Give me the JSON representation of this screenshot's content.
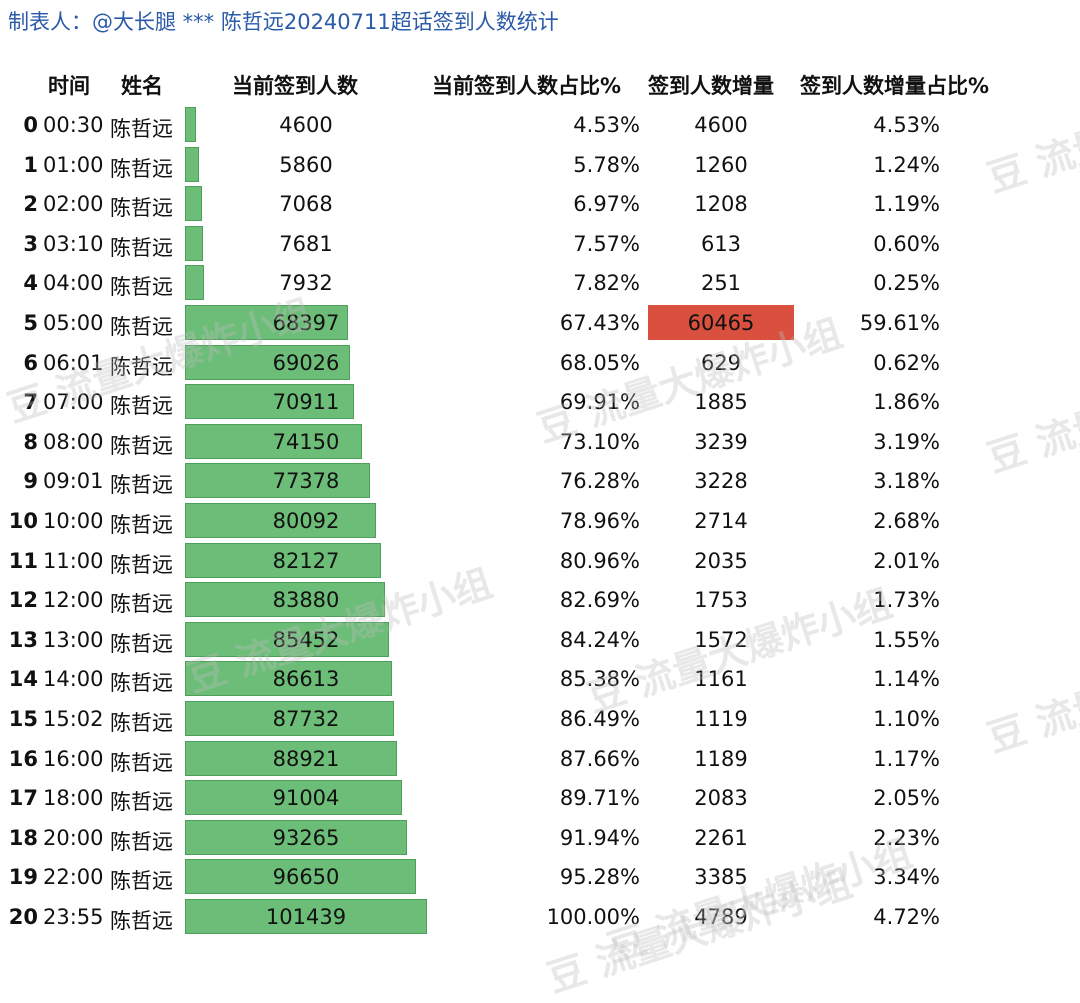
{
  "title": "制表人：@大长腿 *** 陈哲远20240711超话签到人数统计",
  "headers": {
    "time": "时间",
    "name": "姓名",
    "count": "当前签到人数",
    "count_pct": "当前签到人数占比%",
    "increase": "签到人数增量",
    "increase_pct": "签到人数增量占比%"
  },
  "watermark": "豆 流量大爆炸小组",
  "colors": {
    "bar": "#6cbd78",
    "highlight": "#d9503f",
    "title": "#2b5aa8"
  },
  "chart_data": {
    "type": "table",
    "bar_max": 101439,
    "highlight_increase_index": 5,
    "rows": [
      {
        "idx": "0",
        "time": "00:30",
        "name": "陈哲远",
        "count": 4600,
        "count_pct": "4.53%",
        "increase": "4600",
        "increase_pct": "4.53%"
      },
      {
        "idx": "1",
        "time": "01:00",
        "name": "陈哲远",
        "count": 5860,
        "count_pct": "5.78%",
        "increase": "1260",
        "increase_pct": "1.24%"
      },
      {
        "idx": "2",
        "time": "02:00",
        "name": "陈哲远",
        "count": 7068,
        "count_pct": "6.97%",
        "increase": "1208",
        "increase_pct": "1.19%"
      },
      {
        "idx": "3",
        "time": "03:10",
        "name": "陈哲远",
        "count": 7681,
        "count_pct": "7.57%",
        "increase": "613",
        "increase_pct": "0.60%"
      },
      {
        "idx": "4",
        "time": "04:00",
        "name": "陈哲远",
        "count": 7932,
        "count_pct": "7.82%",
        "increase": "251",
        "increase_pct": "0.25%"
      },
      {
        "idx": "5",
        "time": "05:00",
        "name": "陈哲远",
        "count": 68397,
        "count_pct": "67.43%",
        "increase": "60465",
        "increase_pct": "59.61%"
      },
      {
        "idx": "6",
        "time": "06:01",
        "name": "陈哲远",
        "count": 69026,
        "count_pct": "68.05%",
        "increase": "629",
        "increase_pct": "0.62%"
      },
      {
        "idx": "7",
        "time": "07:00",
        "name": "陈哲远",
        "count": 70911,
        "count_pct": "69.91%",
        "increase": "1885",
        "increase_pct": "1.86%"
      },
      {
        "idx": "8",
        "time": "08:00",
        "name": "陈哲远",
        "count": 74150,
        "count_pct": "73.10%",
        "increase": "3239",
        "increase_pct": "3.19%"
      },
      {
        "idx": "9",
        "time": "09:01",
        "name": "陈哲远",
        "count": 77378,
        "count_pct": "76.28%",
        "increase": "3228",
        "increase_pct": "3.18%"
      },
      {
        "idx": "10",
        "time": "10:00",
        "name": "陈哲远",
        "count": 80092,
        "count_pct": "78.96%",
        "increase": "2714",
        "increase_pct": "2.68%"
      },
      {
        "idx": "11",
        "time": "11:00",
        "name": "陈哲远",
        "count": 82127,
        "count_pct": "80.96%",
        "increase": "2035",
        "increase_pct": "2.01%"
      },
      {
        "idx": "12",
        "time": "12:00",
        "name": "陈哲远",
        "count": 83880,
        "count_pct": "82.69%",
        "increase": "1753",
        "increase_pct": "1.73%"
      },
      {
        "idx": "13",
        "time": "13:00",
        "name": "陈哲远",
        "count": 85452,
        "count_pct": "84.24%",
        "increase": "1572",
        "increase_pct": "1.55%"
      },
      {
        "idx": "14",
        "time": "14:00",
        "name": "陈哲远",
        "count": 86613,
        "count_pct": "85.38%",
        "increase": "1161",
        "increase_pct": "1.14%"
      },
      {
        "idx": "15",
        "time": "15:02",
        "name": "陈哲远",
        "count": 87732,
        "count_pct": "86.49%",
        "increase": "1119",
        "increase_pct": "1.10%"
      },
      {
        "idx": "16",
        "time": "16:00",
        "name": "陈哲远",
        "count": 88921,
        "count_pct": "87.66%",
        "increase": "1189",
        "increase_pct": "1.17%"
      },
      {
        "idx": "17",
        "time": "18:00",
        "name": "陈哲远",
        "count": 91004,
        "count_pct": "89.71%",
        "increase": "2083",
        "increase_pct": "2.05%"
      },
      {
        "idx": "18",
        "time": "20:00",
        "name": "陈哲远",
        "count": 93265,
        "count_pct": "91.94%",
        "increase": "2261",
        "increase_pct": "2.23%"
      },
      {
        "idx": "19",
        "time": "22:00",
        "name": "陈哲远",
        "count": 96650,
        "count_pct": "95.28%",
        "increase": "3385",
        "increase_pct": "3.34%"
      },
      {
        "idx": "20",
        "time": "23:55",
        "name": "陈哲远",
        "count": 101439,
        "count_pct": "100.00%",
        "increase": "4789",
        "increase_pct": "4.72%"
      }
    ]
  }
}
